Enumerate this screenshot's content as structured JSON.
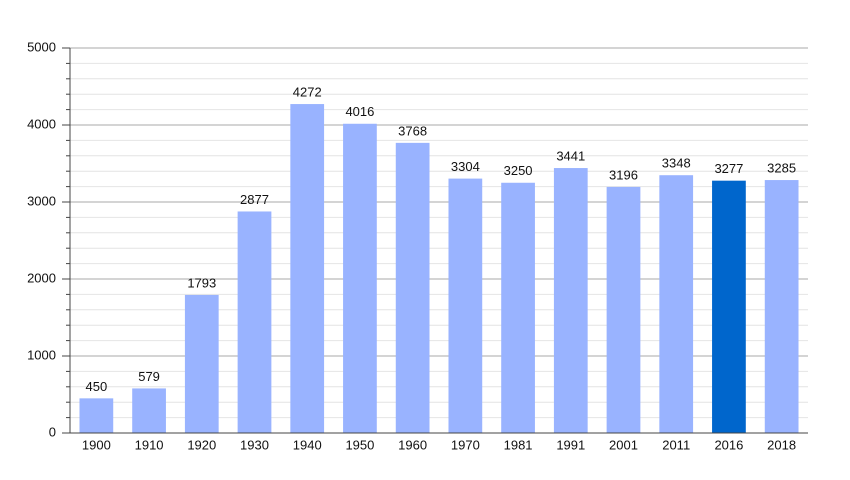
{
  "chart_data": {
    "type": "bar",
    "categories": [
      "1900",
      "1910",
      "1920",
      "1930",
      "1940",
      "1950",
      "1960",
      "1970",
      "1981",
      "1991",
      "2001",
      "2011",
      "2016",
      "2018"
    ],
    "values": [
      450,
      579,
      1793,
      2877,
      4272,
      4016,
      3768,
      3304,
      3250,
      3441,
      3196,
      3348,
      3277,
      3285
    ],
    "colors": [
      "#99b3ff",
      "#99b3ff",
      "#99b3ff",
      "#99b3ff",
      "#99b3ff",
      "#99b3ff",
      "#99b3ff",
      "#99b3ff",
      "#99b3ff",
      "#99b3ff",
      "#99b3ff",
      "#99b3ff",
      "#0066cc",
      "#99b3ff"
    ],
    "ylim": [
      0,
      5000
    ],
    "yticks": [
      0,
      1000,
      2000,
      3000,
      4000,
      5000
    ],
    "minor_yticks": [
      200,
      400,
      600,
      800,
      1200,
      1400,
      1600,
      1800,
      2200,
      2400,
      2600,
      2800,
      3200,
      3400,
      3600,
      3800,
      4200,
      4400,
      4600,
      4800
    ],
    "grid": true
  }
}
